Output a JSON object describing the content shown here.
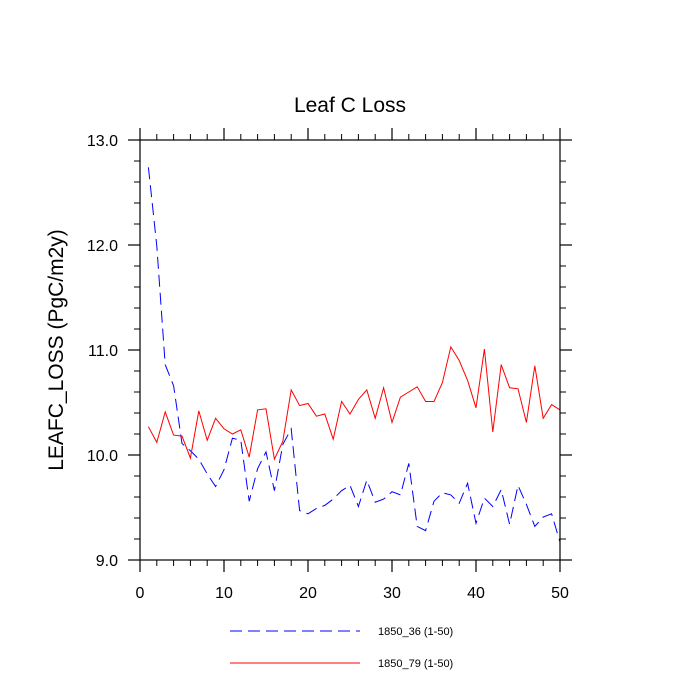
{
  "chart_data": {
    "type": "line",
    "title": "Leaf C Loss",
    "xlabel": "",
    "ylabel": "LEAFC_LOSS  (PgC/m2y)",
    "xlim": [
      0,
      50
    ],
    "ylim": [
      9.0,
      13.0
    ],
    "xticks": [
      0,
      10,
      20,
      30,
      40,
      50
    ],
    "xtick_labels": [
      "0",
      "10",
      "20",
      "30",
      "40",
      "50"
    ],
    "yticks": [
      9.0,
      10.0,
      11.0,
      12.0,
      13.0
    ],
    "ytick_labels": [
      "9.0",
      "10.0",
      "11.0",
      "12.0",
      "13.0"
    ],
    "legend_position": "bottom",
    "x": [
      1,
      2,
      3,
      4,
      5,
      6,
      7,
      8,
      9,
      10,
      11,
      12,
      13,
      14,
      15,
      16,
      17,
      18,
      19,
      20,
      21,
      22,
      23,
      24,
      25,
      26,
      27,
      28,
      29,
      30,
      31,
      32,
      33,
      34,
      35,
      36,
      37,
      38,
      39,
      40,
      41,
      42,
      43,
      44,
      45,
      46,
      47,
      48,
      49,
      50
    ],
    "series": [
      {
        "name": "1850_36 (1-50)",
        "color": "#0000ff",
        "style": "dashed",
        "values": [
          12.74,
          11.99,
          10.86,
          10.66,
          10.11,
          10.04,
          9.96,
          9.82,
          9.7,
          9.86,
          10.16,
          10.14,
          9.56,
          9.87,
          10.03,
          9.66,
          10.1,
          10.25,
          9.47,
          9.44,
          9.49,
          9.52,
          9.58,
          9.66,
          9.71,
          9.51,
          9.76,
          9.55,
          9.58,
          9.65,
          9.62,
          9.92,
          9.32,
          9.28,
          9.56,
          9.64,
          9.62,
          9.54,
          9.73,
          9.35,
          9.59,
          9.51,
          9.67,
          9.34,
          9.71,
          9.53,
          9.32,
          9.41,
          9.44,
          9.17
        ]
      },
      {
        "name": "1850_79 (1-50)",
        "color": "#ff0000",
        "style": "solid",
        "values": [
          10.27,
          10.12,
          10.41,
          10.19,
          10.18,
          9.97,
          10.42,
          10.14,
          10.35,
          10.25,
          10.2,
          10.24,
          9.98,
          10.43,
          10.44,
          9.96,
          10.13,
          10.62,
          10.47,
          10.49,
          10.37,
          10.39,
          10.15,
          10.51,
          10.39,
          10.53,
          10.62,
          10.35,
          10.64,
          10.31,
          10.55,
          10.6,
          10.65,
          10.51,
          10.51,
          10.69,
          11.03,
          10.9,
          10.71,
          10.45,
          11.01,
          10.22,
          10.86,
          10.64,
          10.63,
          10.31,
          10.85,
          10.35,
          10.48,
          10.43
        ]
      }
    ]
  }
}
